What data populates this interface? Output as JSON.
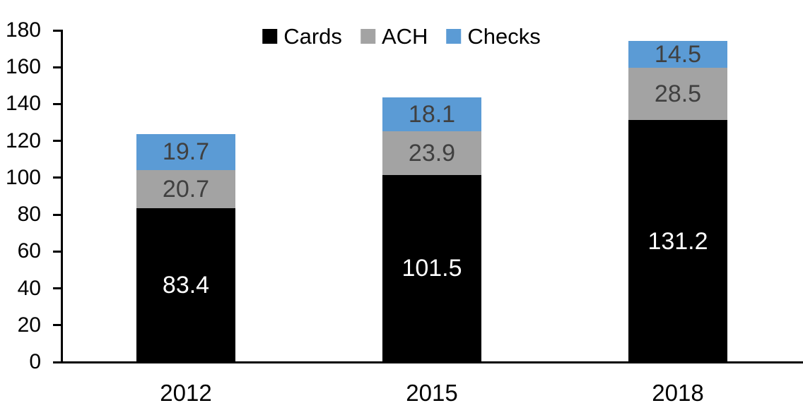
{
  "chart_data": {
    "type": "bar",
    "stacked": true,
    "title": "",
    "categories": [
      "2012",
      "2015",
      "2018"
    ],
    "series": [
      {
        "name": "Cards",
        "color": "#000000",
        "label_color": "#ffffff",
        "values": [
          83.4,
          101.5,
          131.2
        ]
      },
      {
        "name": "ACH",
        "color": "#a3a3a3",
        "label_color": "#404040",
        "values": [
          20.7,
          23.9,
          28.5
        ]
      },
      {
        "name": "Checks",
        "color": "#5b9bd5",
        "label_color": "#404040",
        "values": [
          19.7,
          18.1,
          14.5
        ]
      }
    ],
    "totals": [
      123.8,
      143.5,
      174.2
    ],
    "ylim": [
      0,
      180
    ],
    "yticks": [
      0,
      20,
      40,
      60,
      80,
      100,
      120,
      140,
      160,
      180
    ],
    "grid": false,
    "legend_position": "top-center",
    "axis_color": "#000000",
    "value_decimals": 1
  }
}
